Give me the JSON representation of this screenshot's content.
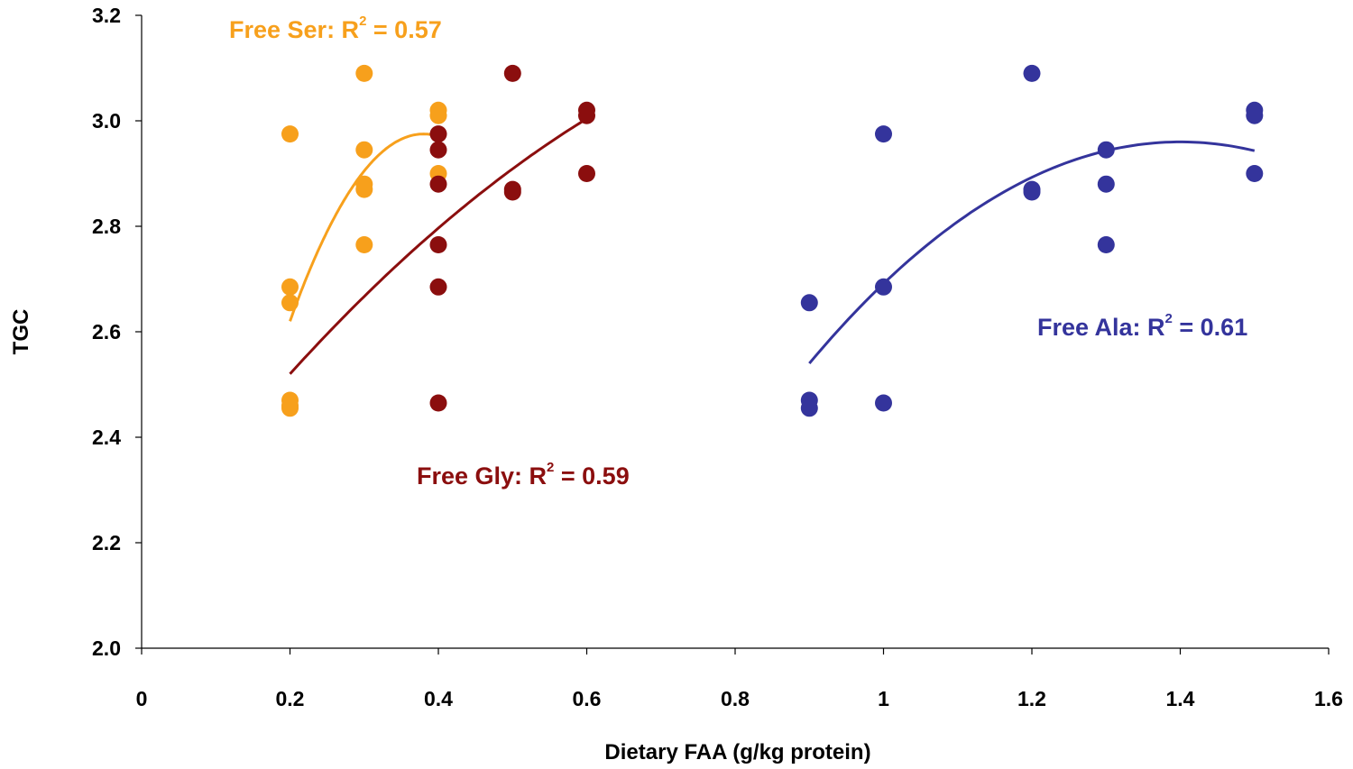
{
  "chart_data": {
    "type": "scatter",
    "title": "",
    "xlabel": "Dietary FAA (g/kg protein)",
    "ylabel": "TGC",
    "xlim": [
      0,
      1.6
    ],
    "ylim": [
      2.0,
      3.2
    ],
    "x_ticks": [
      "0",
      "0.2",
      "0.4",
      "0.6",
      "0.8",
      "1",
      "1.2",
      "1.4",
      "1.6"
    ],
    "y_ticks": [
      "2.0",
      "2.2",
      "2.4",
      "2.6",
      "2.8",
      "3.0",
      "3.2"
    ],
    "grid": false,
    "legend": "none",
    "series": [
      {
        "key": "ser",
        "color": "#F7A01C",
        "points": [
          [
            0.2,
            2.975
          ],
          [
            0.2,
            2.685
          ],
          [
            0.2,
            2.655
          ],
          [
            0.2,
            2.47
          ],
          [
            0.2,
            2.46
          ],
          [
            0.2,
            2.455
          ],
          [
            0.3,
            3.09
          ],
          [
            0.3,
            2.945
          ],
          [
            0.3,
            2.88
          ],
          [
            0.3,
            2.87
          ],
          [
            0.3,
            2.765
          ],
          [
            0.4,
            3.02
          ],
          [
            0.4,
            3.01
          ],
          [
            0.4,
            2.9
          ]
        ],
        "fit": {
          "kind": "quadratic",
          "domain": [
            0.2,
            0.4
          ],
          "apex_x": 0.38,
          "apex_y": 2.975,
          "y_at_start": 2.62
        },
        "annotation": {
          "prefix": "Free Ser: R",
          "sup": "2",
          "suffix": " = 0.57"
        }
      },
      {
        "key": "gly",
        "color": "#8B0E0E",
        "points": [
          [
            0.4,
            2.975
          ],
          [
            0.4,
            2.945
          ],
          [
            0.4,
            2.88
          ],
          [
            0.4,
            2.765
          ],
          [
            0.4,
            2.685
          ],
          [
            0.4,
            2.465
          ],
          [
            0.5,
            3.09
          ],
          [
            0.5,
            2.87
          ],
          [
            0.5,
            2.865
          ],
          [
            0.6,
            3.02
          ],
          [
            0.6,
            3.01
          ],
          [
            0.6,
            2.9
          ]
        ],
        "fit": {
          "kind": "quadratic",
          "domain": [
            0.2,
            0.6
          ],
          "apex_x": 1.1,
          "apex_y": 3.22,
          "y_at_start": 2.52
        },
        "annotation": {
          "prefix": "Free Gly: R",
          "sup": "2",
          "suffix": " = 0.59"
        }
      },
      {
        "key": "ala",
        "color": "#34349C",
        "points": [
          [
            0.9,
            2.655
          ],
          [
            0.9,
            2.47
          ],
          [
            0.9,
            2.455
          ],
          [
            1.0,
            2.975
          ],
          [
            1.0,
            2.685
          ],
          [
            1.0,
            2.465
          ],
          [
            1.2,
            3.09
          ],
          [
            1.2,
            2.87
          ],
          [
            1.2,
            2.865
          ],
          [
            1.3,
            2.945
          ],
          [
            1.3,
            2.88
          ],
          [
            1.3,
            2.765
          ],
          [
            1.5,
            3.02
          ],
          [
            1.5,
            3.01
          ],
          [
            1.5,
            2.9
          ]
        ],
        "fit": {
          "kind": "quadratic",
          "domain": [
            0.9,
            1.5
          ],
          "apex_x": 1.4,
          "apex_y": 2.96,
          "y_at_start": 2.54
        },
        "annotation": {
          "prefix": "Free Ala: R",
          "sup": "2",
          "suffix": " = 0.61"
        }
      }
    ]
  }
}
